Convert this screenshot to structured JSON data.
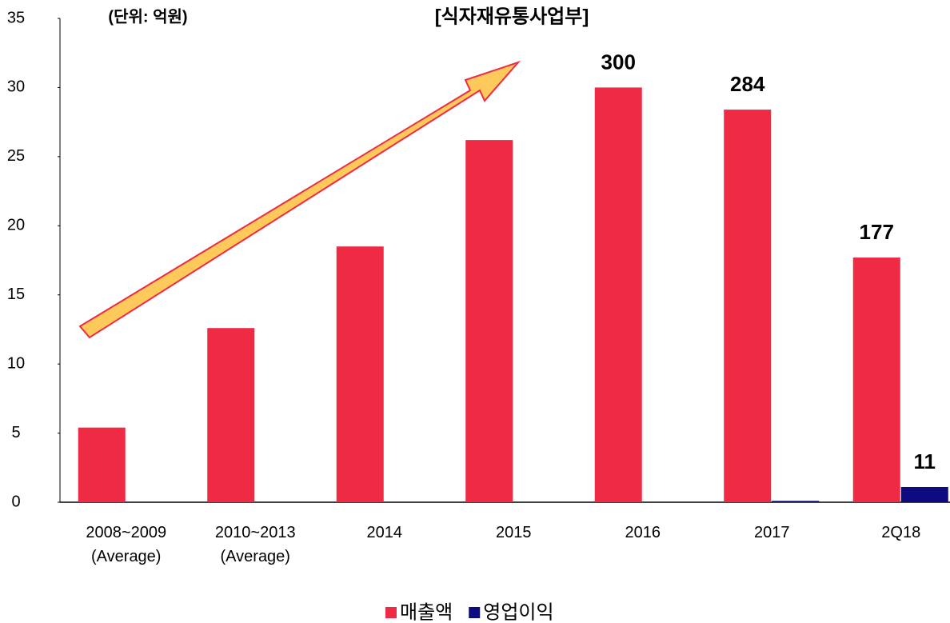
{
  "chart_data": {
    "type": "bar",
    "title": "[식자재유통사업부]",
    "subtitle": "(단위: 억원)",
    "categories": [
      "2008~2009\n(Average)",
      "2010~2013\n(Average)",
      "2014",
      "2015",
      "2016",
      "2017",
      "2Q18"
    ],
    "series": [
      {
        "name": "매출액",
        "color": "#ee2a45",
        "values": [
          5.4,
          12.6,
          18.5,
          26.2,
          30.0,
          28.4,
          17.7
        ],
        "value_labels": [
          null,
          null,
          null,
          null,
          "300",
          "284",
          "177"
        ]
      },
      {
        "name": "영업이익",
        "color": "#0c0c80",
        "values": [
          null,
          null,
          null,
          null,
          null,
          0.1,
          1.1
        ],
        "value_labels": [
          null,
          null,
          null,
          null,
          null,
          null,
          "11"
        ]
      }
    ],
    "ylim": [
      0,
      35
    ],
    "yticks": [
      0,
      5,
      10,
      15,
      20,
      25,
      30,
      35
    ],
    "grid": false,
    "legend": "bottom"
  }
}
